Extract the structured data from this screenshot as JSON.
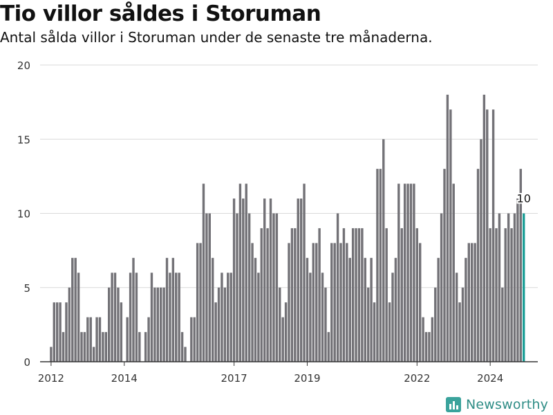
{
  "header": {
    "title": "Tio villor såldes i Storuman",
    "subtitle": "Antal sålda villor i Storuman under de senaste tre månaderna."
  },
  "brand": {
    "name": "Newsworthy"
  },
  "colors": {
    "bar": "#737277",
    "highlight": "#1a9e96",
    "grid": "#d9d9d9",
    "axis": "#333333"
  },
  "chart_data": {
    "type": "bar",
    "title": "Tio villor såldes i Storuman",
    "subtitle": "Antal sålda villor i Storuman under de senaste tre månaderna.",
    "xlabel": "",
    "ylabel": "",
    "ylim": [
      0,
      20
    ],
    "yticks": [
      0,
      5,
      10,
      15,
      20
    ],
    "xticks": [
      2012,
      2014,
      2017,
      2019,
      2022,
      2024
    ],
    "xlim": [
      2011.7,
      2025.3
    ],
    "grid": true,
    "legend": "none",
    "start_year": 2012,
    "step_months": 1,
    "values": [
      1,
      4,
      4,
      4,
      2,
      4,
      5,
      7,
      7,
      6,
      2,
      2,
      3,
      3,
      1,
      3,
      3,
      2,
      2,
      5,
      6,
      6,
      5,
      4,
      0,
      3,
      6,
      7,
      6,
      2,
      0,
      2,
      3,
      6,
      5,
      5,
      5,
      5,
      7,
      6,
      7,
      6,
      6,
      2,
      1,
      0,
      3,
      3,
      8,
      8,
      12,
      10,
      10,
      7,
      4,
      5,
      6,
      5,
      6,
      6,
      11,
      10,
      12,
      11,
      12,
      10,
      8,
      7,
      6,
      9,
      11,
      9,
      11,
      10,
      10,
      5,
      3,
      4,
      8,
      9,
      9,
      11,
      11,
      12,
      7,
      6,
      8,
      8,
      9,
      6,
      5,
      2,
      8,
      8,
      10,
      8,
      9,
      8,
      7,
      9,
      9,
      9,
      9,
      7,
      5,
      7,
      4,
      13,
      13,
      15,
      9,
      4,
      6,
      7,
      12,
      9,
      12,
      12,
      12,
      12,
      9,
      8,
      3,
      2,
      2,
      3,
      5,
      7,
      10,
      13,
      18,
      17,
      12,
      6,
      4,
      5,
      7,
      8,
      8,
      8,
      13,
      15,
      18,
      17,
      9,
      17,
      9,
      10,
      5,
      9,
      10,
      9,
      10,
      11,
      13,
      10
    ],
    "highlight_last": true,
    "annotation": {
      "label": "10",
      "value": 10
    }
  }
}
